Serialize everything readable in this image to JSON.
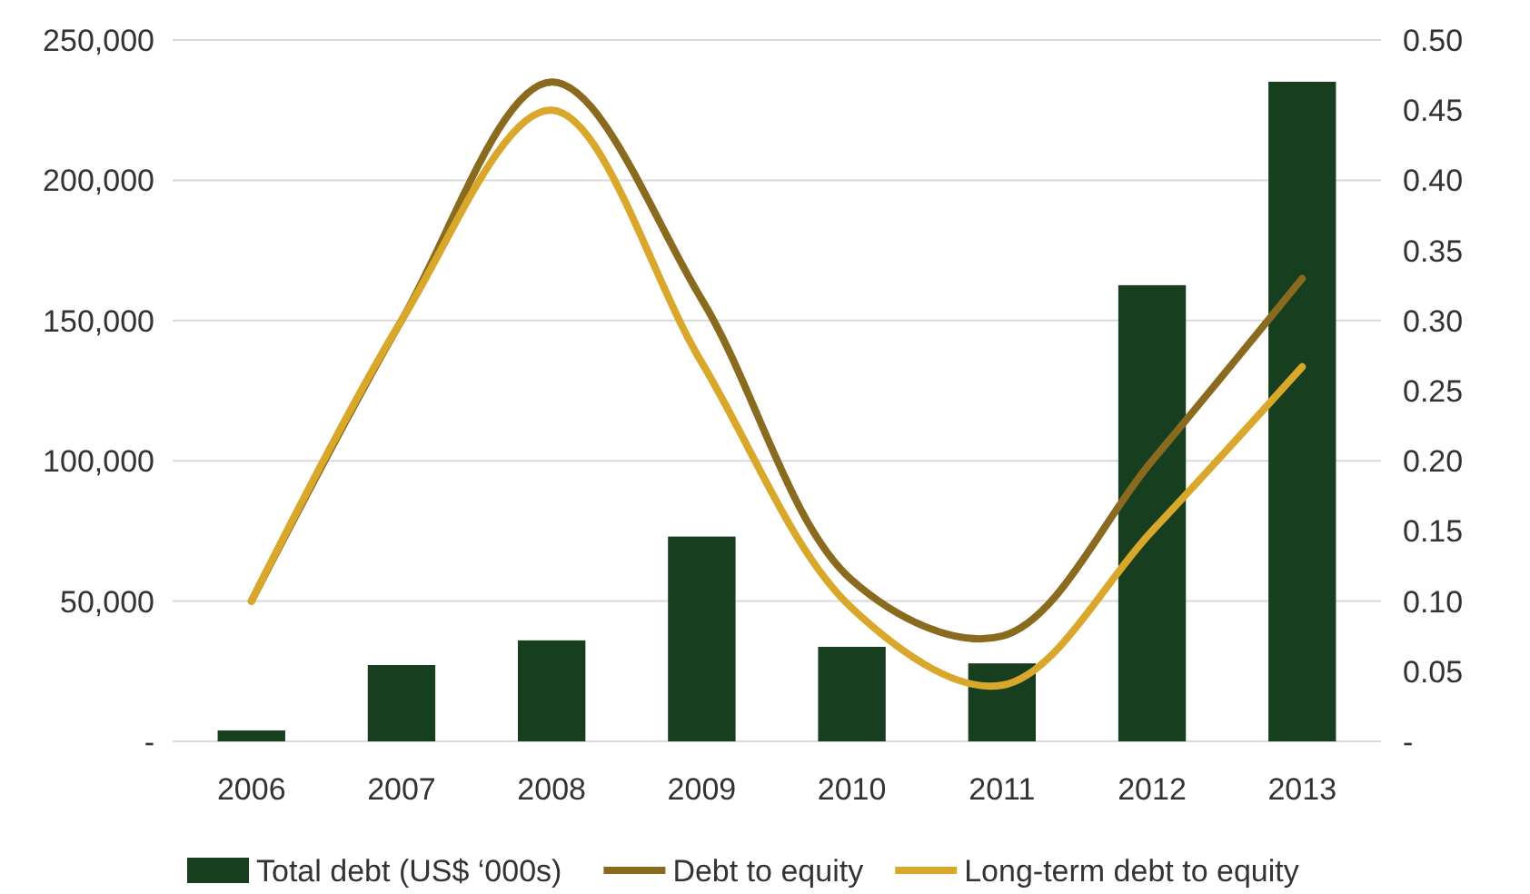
{
  "chart_data": {
    "type": "bar",
    "categories": [
      "2006",
      "2007",
      "2008",
      "2009",
      "2010",
      "2011",
      "2012",
      "2013"
    ],
    "series": [
      {
        "name": "Total debt (US$ ‘000s)",
        "color": "#173f1f",
        "values": [
          3900,
          27200,
          36000,
          73000,
          33700,
          27800,
          162600,
          235100
        ]
      },
      {
        "name": "Debt to equity",
        "type": "line",
        "axis": "y2",
        "color": "#8a6a1e",
        "values": [
          0.1,
          0.3,
          0.47,
          0.315,
          0.115,
          0.075,
          0.2,
          0.33
        ]
      },
      {
        "name": "Long-term debt to equity",
        "type": "line",
        "axis": "y2",
        "color": "#d9a82a",
        "values": [
          0.1,
          0.3,
          0.45,
          0.27,
          0.095,
          0.04,
          0.15,
          0.267
        ]
      }
    ],
    "ylim": [
      0,
      250000
    ],
    "yticks": [
      {
        "value": 0,
        "label": "-"
      },
      {
        "value": 50000,
        "label": "50,000"
      },
      {
        "value": 100000,
        "label": "100,000"
      },
      {
        "value": 150000,
        "label": "150,000"
      },
      {
        "value": 200000,
        "label": "200,000"
      },
      {
        "value": 250000,
        "label": "250,000"
      }
    ],
    "y2lim": [
      0,
      0.5
    ],
    "y2ticks": [
      {
        "value": 0,
        "label": "-"
      },
      {
        "value": 0.05,
        "label": "0.05"
      },
      {
        "value": 0.1,
        "label": "0.10"
      },
      {
        "value": 0.15,
        "label": "0.15"
      },
      {
        "value": 0.2,
        "label": "0.20"
      },
      {
        "value": 0.25,
        "label": "0.25"
      },
      {
        "value": 0.3,
        "label": "0.30"
      },
      {
        "value": 0.35,
        "label": "0.35"
      },
      {
        "value": 0.4,
        "label": "0.40"
      },
      {
        "value": 0.45,
        "label": "0.45"
      },
      {
        "value": 0.5,
        "label": "0.50"
      }
    ],
    "grid": "y",
    "legend": "bottom",
    "line_style": "solid",
    "marker": "none"
  }
}
